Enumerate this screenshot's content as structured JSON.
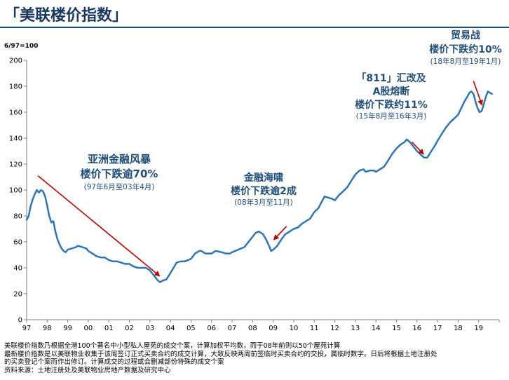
{
  "title": "「美联楼价指数」",
  "chart_data": {
    "type": "line",
    "title": "美联楼价指数",
    "ylabel": "6/97=100",
    "xlabel": "",
    "ylim": [
      0,
      200
    ],
    "yticks": [
      0,
      20,
      40,
      60,
      80,
      100,
      120,
      140,
      160,
      180,
      200
    ],
    "xlim": [
      1997.0,
      2020.0
    ],
    "xtick_labels": [
      "97",
      "98",
      "99",
      "00",
      "01",
      "02",
      "03",
      "04",
      "05",
      "06",
      "07",
      "08",
      "09",
      "10",
      "11",
      "12",
      "13",
      "14",
      "15",
      "16",
      "17",
      "18",
      "19"
    ],
    "grid": false,
    "line_color": "#2e75b6",
    "series": [
      {
        "name": "美联楼价指数",
        "points": [
          [
            1997.0,
            77
          ],
          [
            1997.1,
            80
          ],
          [
            1997.2,
            88
          ],
          [
            1997.3,
            93
          ],
          [
            1997.4,
            97
          ],
          [
            1997.5,
            100
          ],
          [
            1997.6,
            98
          ],
          [
            1997.7,
            100
          ],
          [
            1997.8,
            99
          ],
          [
            1997.9,
            95
          ],
          [
            1998.0,
            88
          ],
          [
            1998.1,
            80
          ],
          [
            1998.2,
            75
          ],
          [
            1998.3,
            76
          ],
          [
            1998.4,
            68
          ],
          [
            1998.5,
            62
          ],
          [
            1998.6,
            58
          ],
          [
            1998.7,
            55
          ],
          [
            1998.8,
            53
          ],
          [
            1998.9,
            52
          ],
          [
            1999.0,
            54
          ],
          [
            1999.2,
            55
          ],
          [
            1999.4,
            56
          ],
          [
            1999.5,
            57
          ],
          [
            1999.7,
            56
          ],
          [
            1999.9,
            55
          ],
          [
            2000.0,
            53
          ],
          [
            2000.2,
            51
          ],
          [
            2000.4,
            49
          ],
          [
            2000.6,
            48
          ],
          [
            2000.8,
            48
          ],
          [
            2001.0,
            46
          ],
          [
            2001.2,
            45
          ],
          [
            2001.4,
            45
          ],
          [
            2001.6,
            44
          ],
          [
            2001.8,
            43
          ],
          [
            2002.0,
            43
          ],
          [
            2002.2,
            41
          ],
          [
            2002.4,
            40
          ],
          [
            2002.6,
            40
          ],
          [
            2002.8,
            40
          ],
          [
            2003.0,
            38
          ],
          [
            2003.1,
            36
          ],
          [
            2003.2,
            34
          ],
          [
            2003.3,
            32
          ],
          [
            2003.4,
            30
          ],
          [
            2003.5,
            29
          ],
          [
            2003.6,
            30
          ],
          [
            2003.8,
            31
          ],
          [
            2004.0,
            36
          ],
          [
            2004.15,
            40
          ],
          [
            2004.3,
            44
          ],
          [
            2004.5,
            45
          ],
          [
            2004.7,
            45
          ],
          [
            2005.0,
            47
          ],
          [
            2005.2,
            51
          ],
          [
            2005.4,
            53
          ],
          [
            2005.5,
            53
          ],
          [
            2005.7,
            51
          ],
          [
            2005.9,
            51
          ],
          [
            2006.0,
            51
          ],
          [
            2006.2,
            53
          ],
          [
            2006.5,
            52
          ],
          [
            2006.7,
            51
          ],
          [
            2006.9,
            51
          ],
          [
            2007.0,
            52
          ],
          [
            2007.3,
            54
          ],
          [
            2007.6,
            56
          ],
          [
            2007.8,
            60
          ],
          [
            2008.0,
            64
          ],
          [
            2008.15,
            67
          ],
          [
            2008.3,
            68
          ],
          [
            2008.5,
            66
          ],
          [
            2008.65,
            62
          ],
          [
            2008.8,
            57
          ],
          [
            2008.9,
            53
          ],
          [
            2009.0,
            54
          ],
          [
            2009.2,
            57
          ],
          [
            2009.4,
            62
          ],
          [
            2009.6,
            66
          ],
          [
            2009.8,
            68
          ],
          [
            2010.0,
            70
          ],
          [
            2010.2,
            71
          ],
          [
            2010.4,
            74
          ],
          [
            2010.6,
            76
          ],
          [
            2010.8,
            78
          ],
          [
            2011.0,
            83
          ],
          [
            2011.2,
            86
          ],
          [
            2011.4,
            92
          ],
          [
            2011.5,
            95
          ],
          [
            2011.7,
            94
          ],
          [
            2011.9,
            93
          ],
          [
            2012.0,
            92
          ],
          [
            2012.2,
            96
          ],
          [
            2012.4,
            99
          ],
          [
            2012.6,
            102
          ],
          [
            2012.8,
            107
          ],
          [
            2013.0,
            112
          ],
          [
            2013.2,
            115
          ],
          [
            2013.4,
            116
          ],
          [
            2013.5,
            114
          ],
          [
            2013.7,
            115
          ],
          [
            2013.9,
            115
          ],
          [
            2014.0,
            114
          ],
          [
            2014.2,
            116
          ],
          [
            2014.4,
            118
          ],
          [
            2014.6,
            123
          ],
          [
            2014.8,
            128
          ],
          [
            2015.0,
            132
          ],
          [
            2015.2,
            135
          ],
          [
            2015.4,
            137
          ],
          [
            2015.5,
            139
          ],
          [
            2015.65,
            137
          ],
          [
            2015.8,
            134
          ],
          [
            2016.0,
            130
          ],
          [
            2016.2,
            127
          ],
          [
            2016.35,
            125
          ],
          [
            2016.5,
            125
          ],
          [
            2016.7,
            130
          ],
          [
            2016.9,
            135
          ],
          [
            2017.0,
            138
          ],
          [
            2017.2,
            143
          ],
          [
            2017.4,
            148
          ],
          [
            2017.6,
            152
          ],
          [
            2017.8,
            155
          ],
          [
            2018.0,
            158
          ],
          [
            2018.15,
            163
          ],
          [
            2018.3,
            168
          ],
          [
            2018.45,
            172
          ],
          [
            2018.55,
            175
          ],
          [
            2018.65,
            176
          ],
          [
            2018.75,
            174
          ],
          [
            2018.85,
            168
          ],
          [
            2018.95,
            163
          ],
          [
            2019.05,
            160
          ],
          [
            2019.15,
            161
          ],
          [
            2019.25,
            166
          ],
          [
            2019.35,
            172
          ],
          [
            2019.45,
            176
          ],
          [
            2019.55,
            175
          ],
          [
            2019.65,
            174
          ]
        ]
      }
    ],
    "annotations": [
      {
        "title_lines": [
          "亚洲金融风暴",
          "楼价下跌逾70%"
        ],
        "sub": "(97年6月至03年4月)",
        "arrow_from": [
          1997.55,
          111
        ],
        "arrow_to": [
          2003.45,
          34
        ]
      },
      {
        "title_lines": [
          "金融海啸",
          "楼价下跌逾2成"
        ],
        "sub": "(08年3月至11月)",
        "arrow_from": [
          2009.65,
          72
        ],
        "arrow_to": [
          2009.05,
          62
        ]
      },
      {
        "title_lines": [
          "「811」汇改及",
          "A股熔断",
          "楼价下跌约11%"
        ],
        "sub": "(15年8月至16年3月)",
        "arrow_from": [
          2015.75,
          137
        ],
        "arrow_to": [
          2016.3,
          128
        ]
      },
      {
        "title_lines": [
          "贸易战",
          "楼价下跌约10%"
        ],
        "sub": "(18年8月至19年1月)",
        "arrow_from": [
          2018.75,
          184
        ],
        "arrow_to": [
          2019.15,
          166
        ]
      }
    ]
  },
  "notes": [
    "美联楼价指数乃根据全港100个著名中小型私人屋苑的成交个案，计算加权平均数，而于08年前则以50个屋苑计算",
    "最新楼价指数是以美联物业收集于该周签订正式买卖合约的成交计算，大致反映两周前签临时买卖合约的交投，属临时数字。日后将根据土地注册处",
    "的买卖登记个案而作出修订。计算成交的过程或会删减部份特殊的成交个案",
    "资料来源：土地注册处及美联物业房地产数据及研究中心"
  ]
}
